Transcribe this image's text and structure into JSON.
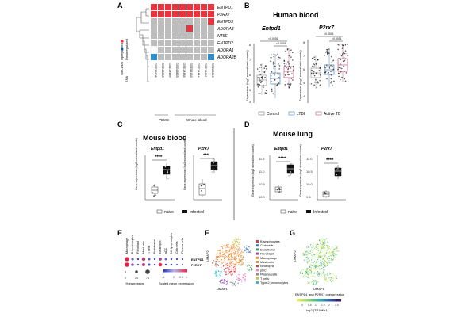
{
  "panels": {
    "A": {
      "letter": "A",
      "genes": [
        "ENTPD1",
        "P2RX7",
        "ENTPD3",
        "ADORA3",
        "NT5E",
        "ENTPD2",
        "ADORA1",
        "ADORA2B"
      ],
      "datasets": [
        "GSE34608",
        "GSE42830",
        "GSE19439",
        "GSE42825",
        "GSE19435",
        "GSE56153",
        "GSE19444",
        "GSE19491",
        "GSE69613"
      ],
      "group_pbmc": "PBMC",
      "group_wb": "Whole Blood",
      "legend": [
        "Non-DEG",
        "Upregulated",
        "Downregulated",
        "ENA"
      ],
      "colors": {
        "up": "#e8343f",
        "down": "#2d8fd0",
        "non": "#bdbdbd",
        "na": "#ffffff"
      },
      "matrix": [
        [
          "up",
          "up",
          "up",
          "up",
          "up",
          "up",
          "up",
          "up",
          "up"
        ],
        [
          "up",
          "up",
          "up",
          "up",
          "up",
          "up",
          "up",
          "up",
          "up"
        ],
        [
          "non",
          "non",
          "non",
          "non",
          "non",
          "non",
          "non",
          "non",
          "up"
        ],
        [
          "non",
          "non",
          "non",
          "non",
          "non",
          "up",
          "non",
          "non",
          "non"
        ],
        [
          "non",
          "non",
          "non",
          "non",
          "non",
          "non",
          "non",
          "non",
          "non"
        ],
        [
          "non",
          "non",
          "non",
          "non",
          "non",
          "non",
          "non",
          "non",
          "non"
        ],
        [
          "na",
          "non",
          "non",
          "non",
          "non",
          "non",
          "non",
          "non",
          "non"
        ],
        [
          "down",
          "non",
          "non",
          "non",
          "non",
          "non",
          "non",
          "non",
          "down"
        ]
      ]
    },
    "B": {
      "letter": "B",
      "title": "Human blood",
      "gene1": "Entpd1",
      "gene2": "P2rx7",
      "ylabel": "Expression (log2 normalized counts)",
      "pvals": [
        "<0.0001",
        "<0.0001"
      ],
      "legend": [
        "Control",
        "LTBI",
        "Active TB"
      ],
      "colors": {
        "control": "#9a9a9a",
        "ltbi": "#4a7fb5",
        "atb": "#c1537a"
      }
    },
    "C": {
      "letter": "C",
      "title": "Mouse blood",
      "gene1": "Entpd1",
      "gene2": "P2rx7",
      "ylabel": "Gene expression (log2 normalized counts)",
      "sig": "****",
      "sig2": "***",
      "legend": [
        "naive",
        "Infected"
      ]
    },
    "D": {
      "letter": "D",
      "title": "Mouse lung",
      "gene1": "Entpd1",
      "gene2": "P2rx7",
      "ylabel": "Gene expression (log2 normalized counts)",
      "sig": "****",
      "sig2": "****",
      "legend": [
        "naive",
        "Infected"
      ],
      "ticks1": [
        "11.5",
        "11.0",
        "10.5",
        "10.0"
      ],
      "ticks2": [
        "11.0",
        "10.5",
        "10.0",
        "9.5"
      ]
    },
    "E": {
      "letter": "E",
      "genes": [
        "ENTPD1",
        "P2RX7"
      ],
      "celltypes": [
        "Macrophage",
        "B lymphocytes",
        "Fibroblast",
        "Mast cells",
        "T cells",
        "Endothelial",
        "Neutrophil",
        "pDC",
        "NK lymphocytes",
        "Club cells",
        "Plasma cells"
      ],
      "pct_label": "% expressing",
      "pct_ticks": [
        "0",
        "25",
        "75"
      ],
      "scale_label": "Scaled mean expression",
      "scale_ticks": [
        "-1",
        "0",
        "0.5",
        "1"
      ]
    },
    "F": {
      "letter": "F",
      "xlabel": "UMAP1",
      "ylabel": "UMAP2",
      "legend": [
        {
          "label": "B lymphocytes",
          "color": "#e6303a"
        },
        {
          "label": "Club cells",
          "color": "#3a79c6"
        },
        {
          "label": "Endothelial",
          "color": "#3da35a"
        },
        {
          "label": "Fibroblast",
          "color": "#8b4fb3"
        },
        {
          "label": "Macrophage",
          "color": "#f28a2e"
        },
        {
          "label": "Mast cells",
          "color": "#c59a3c"
        },
        {
          "label": "Neutrophil",
          "color": "#a8573c"
        },
        {
          "label": "pDC",
          "color": "#e78ac3"
        },
        {
          "label": "Plasma cells",
          "color": "#8e8e8e"
        },
        {
          "label": "T cells",
          "color": "#c7c838"
        },
        {
          "label": "Type-2 pneumocytes",
          "color": "#36b9c9"
        }
      ]
    },
    "G": {
      "letter": "G",
      "xlabel": "UMAP1",
      "ylabel": "UMAP2",
      "caption": "ENTPD1 and P2RX7 coexpression",
      "scale_label": "log2 (TP10K+1)",
      "scale_ticks": [
        "0",
        "0.5",
        "1",
        "1.5",
        "2",
        "2.5"
      ]
    }
  }
}
